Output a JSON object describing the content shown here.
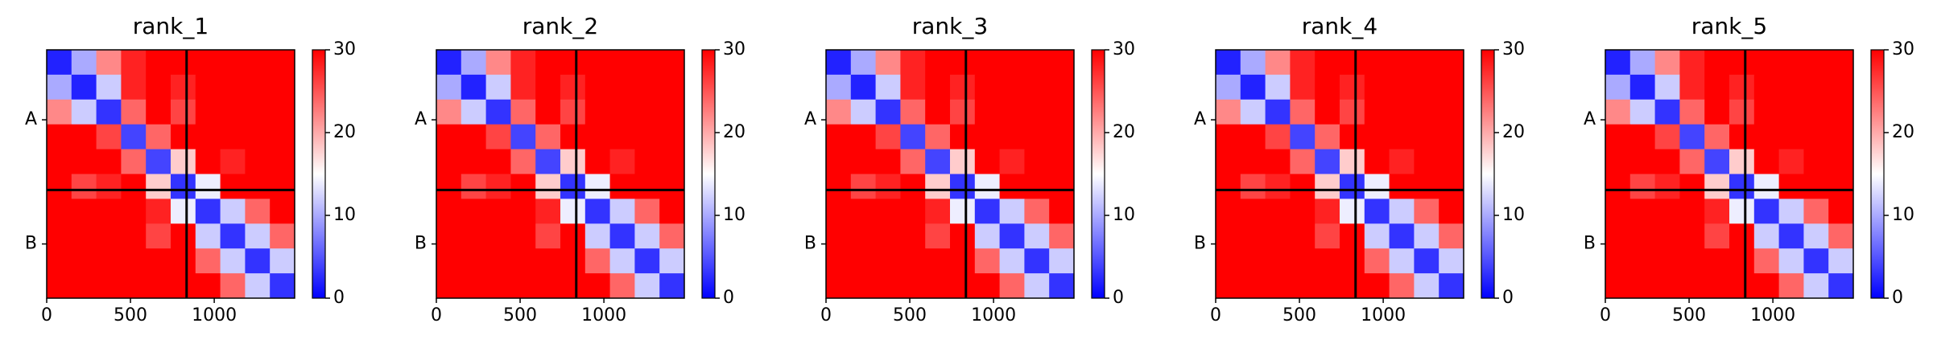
{
  "chart_data": [
    {
      "type": "heatmap",
      "title": "rank_1",
      "bins": [
        0,
        148,
        296,
        444,
        592,
        740,
        888,
        1036,
        1184,
        1332,
        1480
      ],
      "xlim": [
        0,
        1480
      ],
      "ylim": [
        1480,
        0
      ],
      "xticks": [
        0,
        500,
        1000
      ],
      "yticks": [
        {
          "value": 417,
          "label": "A"
        },
        {
          "value": 1157,
          "label": "B"
        }
      ],
      "chain_breaks": [
        835
      ],
      "clim": [
        0,
        30
      ],
      "cticks": [
        0,
        10,
        20,
        30
      ],
      "colors": [
        "#0000ff",
        "#ffffff",
        "#ff0000"
      ],
      "values": [
        [
          2,
          10,
          22,
          28,
          30,
          30,
          30,
          30,
          30,
          30
        ],
        [
          10,
          2,
          12,
          28,
          30,
          28,
          30,
          30,
          30,
          30
        ],
        [
          22,
          12,
          3,
          24,
          30,
          26,
          30,
          30,
          30,
          30
        ],
        [
          30,
          30,
          26,
          4,
          24,
          30,
          30,
          30,
          30,
          30
        ],
        [
          30,
          30,
          30,
          24,
          4,
          18,
          30,
          28,
          30,
          30
        ],
        [
          30,
          26,
          28,
          30,
          18,
          3,
          14,
          30,
          30,
          30
        ],
        [
          30,
          30,
          30,
          30,
          28,
          14,
          3,
          12,
          24,
          30
        ],
        [
          30,
          30,
          30,
          30,
          26,
          30,
          12,
          3,
          12,
          24
        ],
        [
          30,
          30,
          30,
          30,
          30,
          30,
          24,
          12,
          3,
          12
        ],
        [
          30,
          30,
          30,
          30,
          30,
          30,
          30,
          24,
          12,
          3
        ]
      ]
    },
    {
      "type": "heatmap",
      "title": "rank_2",
      "bins": [
        0,
        148,
        296,
        444,
        592,
        740,
        888,
        1036,
        1184,
        1332,
        1480
      ],
      "xlim": [
        0,
        1480
      ],
      "ylim": [
        1480,
        0
      ],
      "xticks": [
        0,
        500,
        1000
      ],
      "yticks": [
        {
          "value": 417,
          "label": "A"
        },
        {
          "value": 1157,
          "label": "B"
        }
      ],
      "chain_breaks": [
        835
      ],
      "clim": [
        0,
        30
      ],
      "cticks": [
        0,
        10,
        20,
        30
      ],
      "colors": [
        "#0000ff",
        "#ffffff",
        "#ff0000"
      ],
      "values": [
        [
          2,
          10,
          22,
          28,
          30,
          30,
          30,
          30,
          30,
          30
        ],
        [
          10,
          2,
          12,
          28,
          30,
          28,
          30,
          30,
          30,
          30
        ],
        [
          22,
          12,
          3,
          24,
          30,
          26,
          30,
          30,
          30,
          30
        ],
        [
          30,
          30,
          26,
          4,
          24,
          30,
          30,
          30,
          30,
          30
        ],
        [
          30,
          30,
          30,
          24,
          4,
          18,
          30,
          28,
          30,
          30
        ],
        [
          30,
          26,
          28,
          30,
          18,
          3,
          14,
          30,
          30,
          30
        ],
        [
          30,
          30,
          30,
          30,
          28,
          14,
          3,
          12,
          24,
          30
        ],
        [
          30,
          30,
          30,
          30,
          26,
          30,
          12,
          3,
          12,
          24
        ],
        [
          30,
          30,
          30,
          30,
          30,
          30,
          24,
          12,
          3,
          12
        ],
        [
          30,
          30,
          30,
          30,
          30,
          30,
          30,
          24,
          12,
          3
        ]
      ]
    },
    {
      "type": "heatmap",
      "title": "rank_3",
      "bins": [
        0,
        148,
        296,
        444,
        592,
        740,
        888,
        1036,
        1184,
        1332,
        1480
      ],
      "xlim": [
        0,
        1480
      ],
      "ylim": [
        1480,
        0
      ],
      "xticks": [
        0,
        500,
        1000
      ],
      "yticks": [
        {
          "value": 417,
          "label": "A"
        },
        {
          "value": 1157,
          "label": "B"
        }
      ],
      "chain_breaks": [
        835
      ],
      "clim": [
        0,
        30
      ],
      "cticks": [
        0,
        10,
        20,
        30
      ],
      "colors": [
        "#0000ff",
        "#ffffff",
        "#ff0000"
      ],
      "values": [
        [
          2,
          10,
          22,
          28,
          30,
          30,
          30,
          30,
          30,
          30
        ],
        [
          10,
          2,
          12,
          28,
          30,
          28,
          30,
          30,
          30,
          30
        ],
        [
          22,
          12,
          3,
          24,
          30,
          26,
          30,
          30,
          30,
          30
        ],
        [
          30,
          30,
          26,
          4,
          24,
          30,
          30,
          30,
          30,
          30
        ],
        [
          30,
          30,
          30,
          24,
          4,
          18,
          30,
          28,
          30,
          30
        ],
        [
          30,
          26,
          28,
          30,
          18,
          3,
          14,
          30,
          30,
          30
        ],
        [
          30,
          30,
          30,
          30,
          28,
          14,
          3,
          12,
          24,
          30
        ],
        [
          30,
          30,
          30,
          30,
          26,
          30,
          12,
          3,
          12,
          24
        ],
        [
          30,
          30,
          30,
          30,
          30,
          30,
          24,
          12,
          3,
          12
        ],
        [
          30,
          30,
          30,
          30,
          30,
          30,
          30,
          24,
          12,
          3
        ]
      ]
    },
    {
      "type": "heatmap",
      "title": "rank_4",
      "bins": [
        0,
        148,
        296,
        444,
        592,
        740,
        888,
        1036,
        1184,
        1332,
        1480
      ],
      "xlim": [
        0,
        1480
      ],
      "ylim": [
        1480,
        0
      ],
      "xticks": [
        0,
        500,
        1000
      ],
      "yticks": [
        {
          "value": 417,
          "label": "A"
        },
        {
          "value": 1157,
          "label": "B"
        }
      ],
      "chain_breaks": [
        835
      ],
      "clim": [
        0,
        30
      ],
      "cticks": [
        0,
        10,
        20,
        30
      ],
      "colors": [
        "#0000ff",
        "#ffffff",
        "#ff0000"
      ],
      "values": [
        [
          2,
          10,
          22,
          28,
          30,
          30,
          30,
          30,
          30,
          30
        ],
        [
          10,
          2,
          12,
          28,
          30,
          28,
          30,
          30,
          30,
          30
        ],
        [
          22,
          12,
          3,
          24,
          30,
          26,
          30,
          30,
          30,
          30
        ],
        [
          30,
          30,
          26,
          4,
          24,
          30,
          30,
          30,
          30,
          30
        ],
        [
          30,
          30,
          30,
          24,
          4,
          18,
          30,
          28,
          30,
          30
        ],
        [
          30,
          26,
          28,
          30,
          18,
          3,
          14,
          30,
          30,
          30
        ],
        [
          30,
          30,
          30,
          30,
          28,
          14,
          3,
          12,
          24,
          30
        ],
        [
          30,
          30,
          30,
          30,
          26,
          30,
          12,
          3,
          12,
          24
        ],
        [
          30,
          30,
          30,
          30,
          30,
          30,
          24,
          12,
          3,
          12
        ],
        [
          30,
          30,
          30,
          30,
          30,
          30,
          30,
          24,
          12,
          3
        ]
      ]
    },
    {
      "type": "heatmap",
      "title": "rank_5",
      "bins": [
        0,
        148,
        296,
        444,
        592,
        740,
        888,
        1036,
        1184,
        1332,
        1480
      ],
      "xlim": [
        0,
        1480
      ],
      "ylim": [
        1480,
        0
      ],
      "xticks": [
        0,
        500,
        1000
      ],
      "yticks": [
        {
          "value": 417,
          "label": "A"
        },
        {
          "value": 1157,
          "label": "B"
        }
      ],
      "chain_breaks": [
        835
      ],
      "clim": [
        0,
        30
      ],
      "cticks": [
        0,
        10,
        20,
        30
      ],
      "colors": [
        "#0000ff",
        "#ffffff",
        "#ff0000"
      ],
      "values": [
        [
          2,
          10,
          22,
          28,
          30,
          30,
          30,
          30,
          30,
          30
        ],
        [
          10,
          2,
          12,
          28,
          30,
          28,
          30,
          30,
          30,
          30
        ],
        [
          22,
          12,
          3,
          24,
          30,
          26,
          30,
          30,
          30,
          30
        ],
        [
          30,
          30,
          26,
          4,
          24,
          30,
          30,
          30,
          30,
          30
        ],
        [
          30,
          30,
          30,
          24,
          4,
          18,
          30,
          28,
          30,
          30
        ],
        [
          30,
          26,
          28,
          30,
          18,
          3,
          14,
          30,
          30,
          30
        ],
        [
          30,
          30,
          30,
          30,
          28,
          14,
          3,
          12,
          24,
          30
        ],
        [
          30,
          30,
          30,
          30,
          26,
          30,
          12,
          3,
          12,
          24
        ],
        [
          30,
          30,
          30,
          30,
          30,
          30,
          24,
          12,
          3,
          12
        ],
        [
          30,
          30,
          30,
          30,
          30,
          30,
          30,
          24,
          12,
          3
        ]
      ]
    }
  ]
}
